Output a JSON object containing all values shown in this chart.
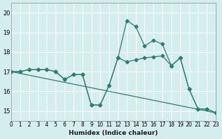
{
  "xlabel": "Humidex (Indice chaleur)",
  "ylabel": "",
  "background_color": "#d4eeee",
  "line_color": "#2e7d6e",
  "grid_color": "#ffffff",
  "xlim": [
    0,
    23
  ],
  "ylim": [
    14.5,
    20.5
  ],
  "yticks": [
    15,
    16,
    17,
    18,
    19,
    20
  ],
  "xticks": [
    0,
    1,
    2,
    3,
    4,
    5,
    6,
    7,
    8,
    9,
    10,
    11,
    12,
    13,
    14,
    15,
    16,
    17,
    18,
    19,
    20,
    21,
    22,
    23
  ],
  "lines": [
    {
      "x": [
        0,
        1,
        2,
        3,
        4,
        5,
        6,
        7,
        8,
        9,
        10,
        11,
        12,
        13,
        14,
        15,
        16,
        17,
        18,
        19,
        20,
        21,
        22,
        23
      ],
      "y": [
        17.0,
        17.0,
        17.1,
        17.1,
        17.1,
        17.0,
        16.6,
        16.85,
        16.85,
        15.3,
        15.3,
        16.3,
        17.7,
        19.6,
        19.3,
        18.3,
        18.6,
        18.4,
        17.3,
        17.7,
        16.1,
        15.1,
        15.1,
        14.9
      ]
    },
    {
      "x": [
        0,
        1,
        2,
        3,
        4,
        5,
        6,
        7,
        8,
        9,
        10,
        11,
        12,
        13,
        14,
        15,
        16,
        17,
        18,
        19,
        20,
        21,
        22,
        23
      ],
      "y": [
        17.0,
        17.0,
        17.1,
        17.1,
        17.1,
        17.0,
        16.6,
        16.85,
        16.85,
        15.3,
        15.3,
        16.3,
        17.7,
        17.5,
        17.6,
        17.7,
        17.75,
        17.8,
        17.3,
        17.7,
        16.1,
        15.1,
        15.1,
        14.9
      ]
    },
    {
      "x": [
        0,
        23
      ],
      "y": [
        17.0,
        14.9
      ]
    }
  ]
}
